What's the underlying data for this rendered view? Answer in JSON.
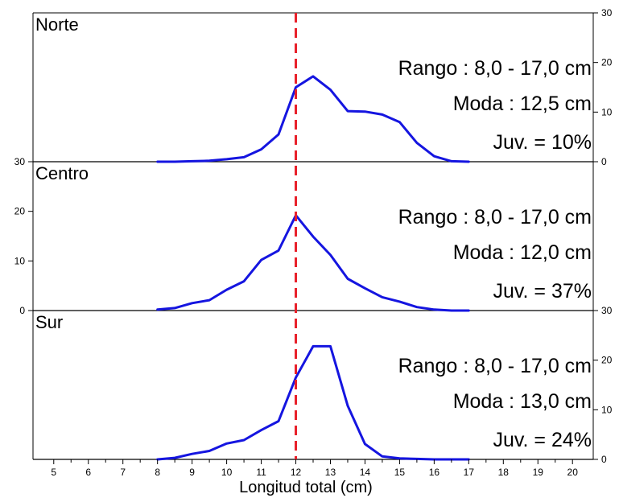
{
  "chart_data": {
    "type": "line",
    "xlabel": "Longitud total (cm)",
    "xlim": [
      4.4,
      20.6
    ],
    "x_ticks": [
      5,
      6,
      7,
      8,
      9,
      10,
      11,
      12,
      13,
      14,
      15,
      16,
      17,
      18,
      19,
      20
    ],
    "reference_line": {
      "x": 12,
      "color": "#e8202a",
      "style": "dashed"
    },
    "line_color": "#1515e0",
    "panels": [
      {
        "title": "Norte",
        "ylim": [
          0,
          30
        ],
        "y_ticks": [
          0,
          10,
          20,
          30
        ],
        "y_axis_side": "right",
        "annotations": [
          "Rango : 8,0 - 17,0 cm",
          "Moda : 12,5 cm",
          "Juv. = 10%"
        ],
        "x": [
          8,
          8.5,
          9,
          9.5,
          10,
          10.5,
          11,
          11.5,
          12,
          12.5,
          13,
          13.5,
          14,
          14.5,
          15,
          15.5,
          16,
          16.5,
          17
        ],
        "y": [
          0,
          0,
          0.1,
          0.2,
          0.5,
          0.9,
          2.5,
          5.5,
          15,
          17.2,
          14.5,
          10.2,
          10.1,
          9.5,
          8,
          3.8,
          1.1,
          0.1,
          0
        ]
      },
      {
        "title": "Centro",
        "ylim": [
          0,
          30
        ],
        "y_ticks": [
          0,
          10,
          20,
          30
        ],
        "y_axis_side": "left",
        "annotations": [
          "Rango : 8,0 - 17,0 cm",
          "Moda : 12,0 cm",
          "Juv. = 37%"
        ],
        "x": [
          8,
          8.5,
          9,
          9.5,
          10,
          10.5,
          11,
          11.5,
          12,
          12.5,
          13,
          13.5,
          14,
          14.5,
          15,
          15.5,
          16,
          16.5,
          17
        ],
        "y": [
          0.2,
          0.5,
          1.5,
          2.1,
          4.2,
          5.9,
          10.2,
          12.1,
          19.2,
          14.9,
          11.2,
          6.4,
          4.5,
          2.7,
          1.8,
          0.7,
          0.2,
          0,
          0
        ]
      },
      {
        "title": "Sur",
        "ylim": [
          0,
          30
        ],
        "y_ticks": [
          0,
          10,
          20,
          30
        ],
        "y_axis_side": "right",
        "annotations": [
          "Rango : 8,0 - 17,0 cm",
          "Moda : 13,0 cm",
          "Juv. = 24%"
        ],
        "x": [
          8,
          8.5,
          9,
          9.5,
          10,
          10.5,
          11,
          11.5,
          12,
          12.5,
          13,
          13.5,
          14,
          14.5,
          15,
          15.5,
          16,
          16.5,
          17
        ],
        "y": [
          0,
          0.3,
          1.1,
          1.7,
          3.2,
          3.9,
          5.9,
          7.7,
          16.5,
          22.8,
          22.8,
          10.8,
          3.1,
          0.6,
          0.2,
          0.1,
          0,
          0,
          0
        ]
      }
    ]
  }
}
